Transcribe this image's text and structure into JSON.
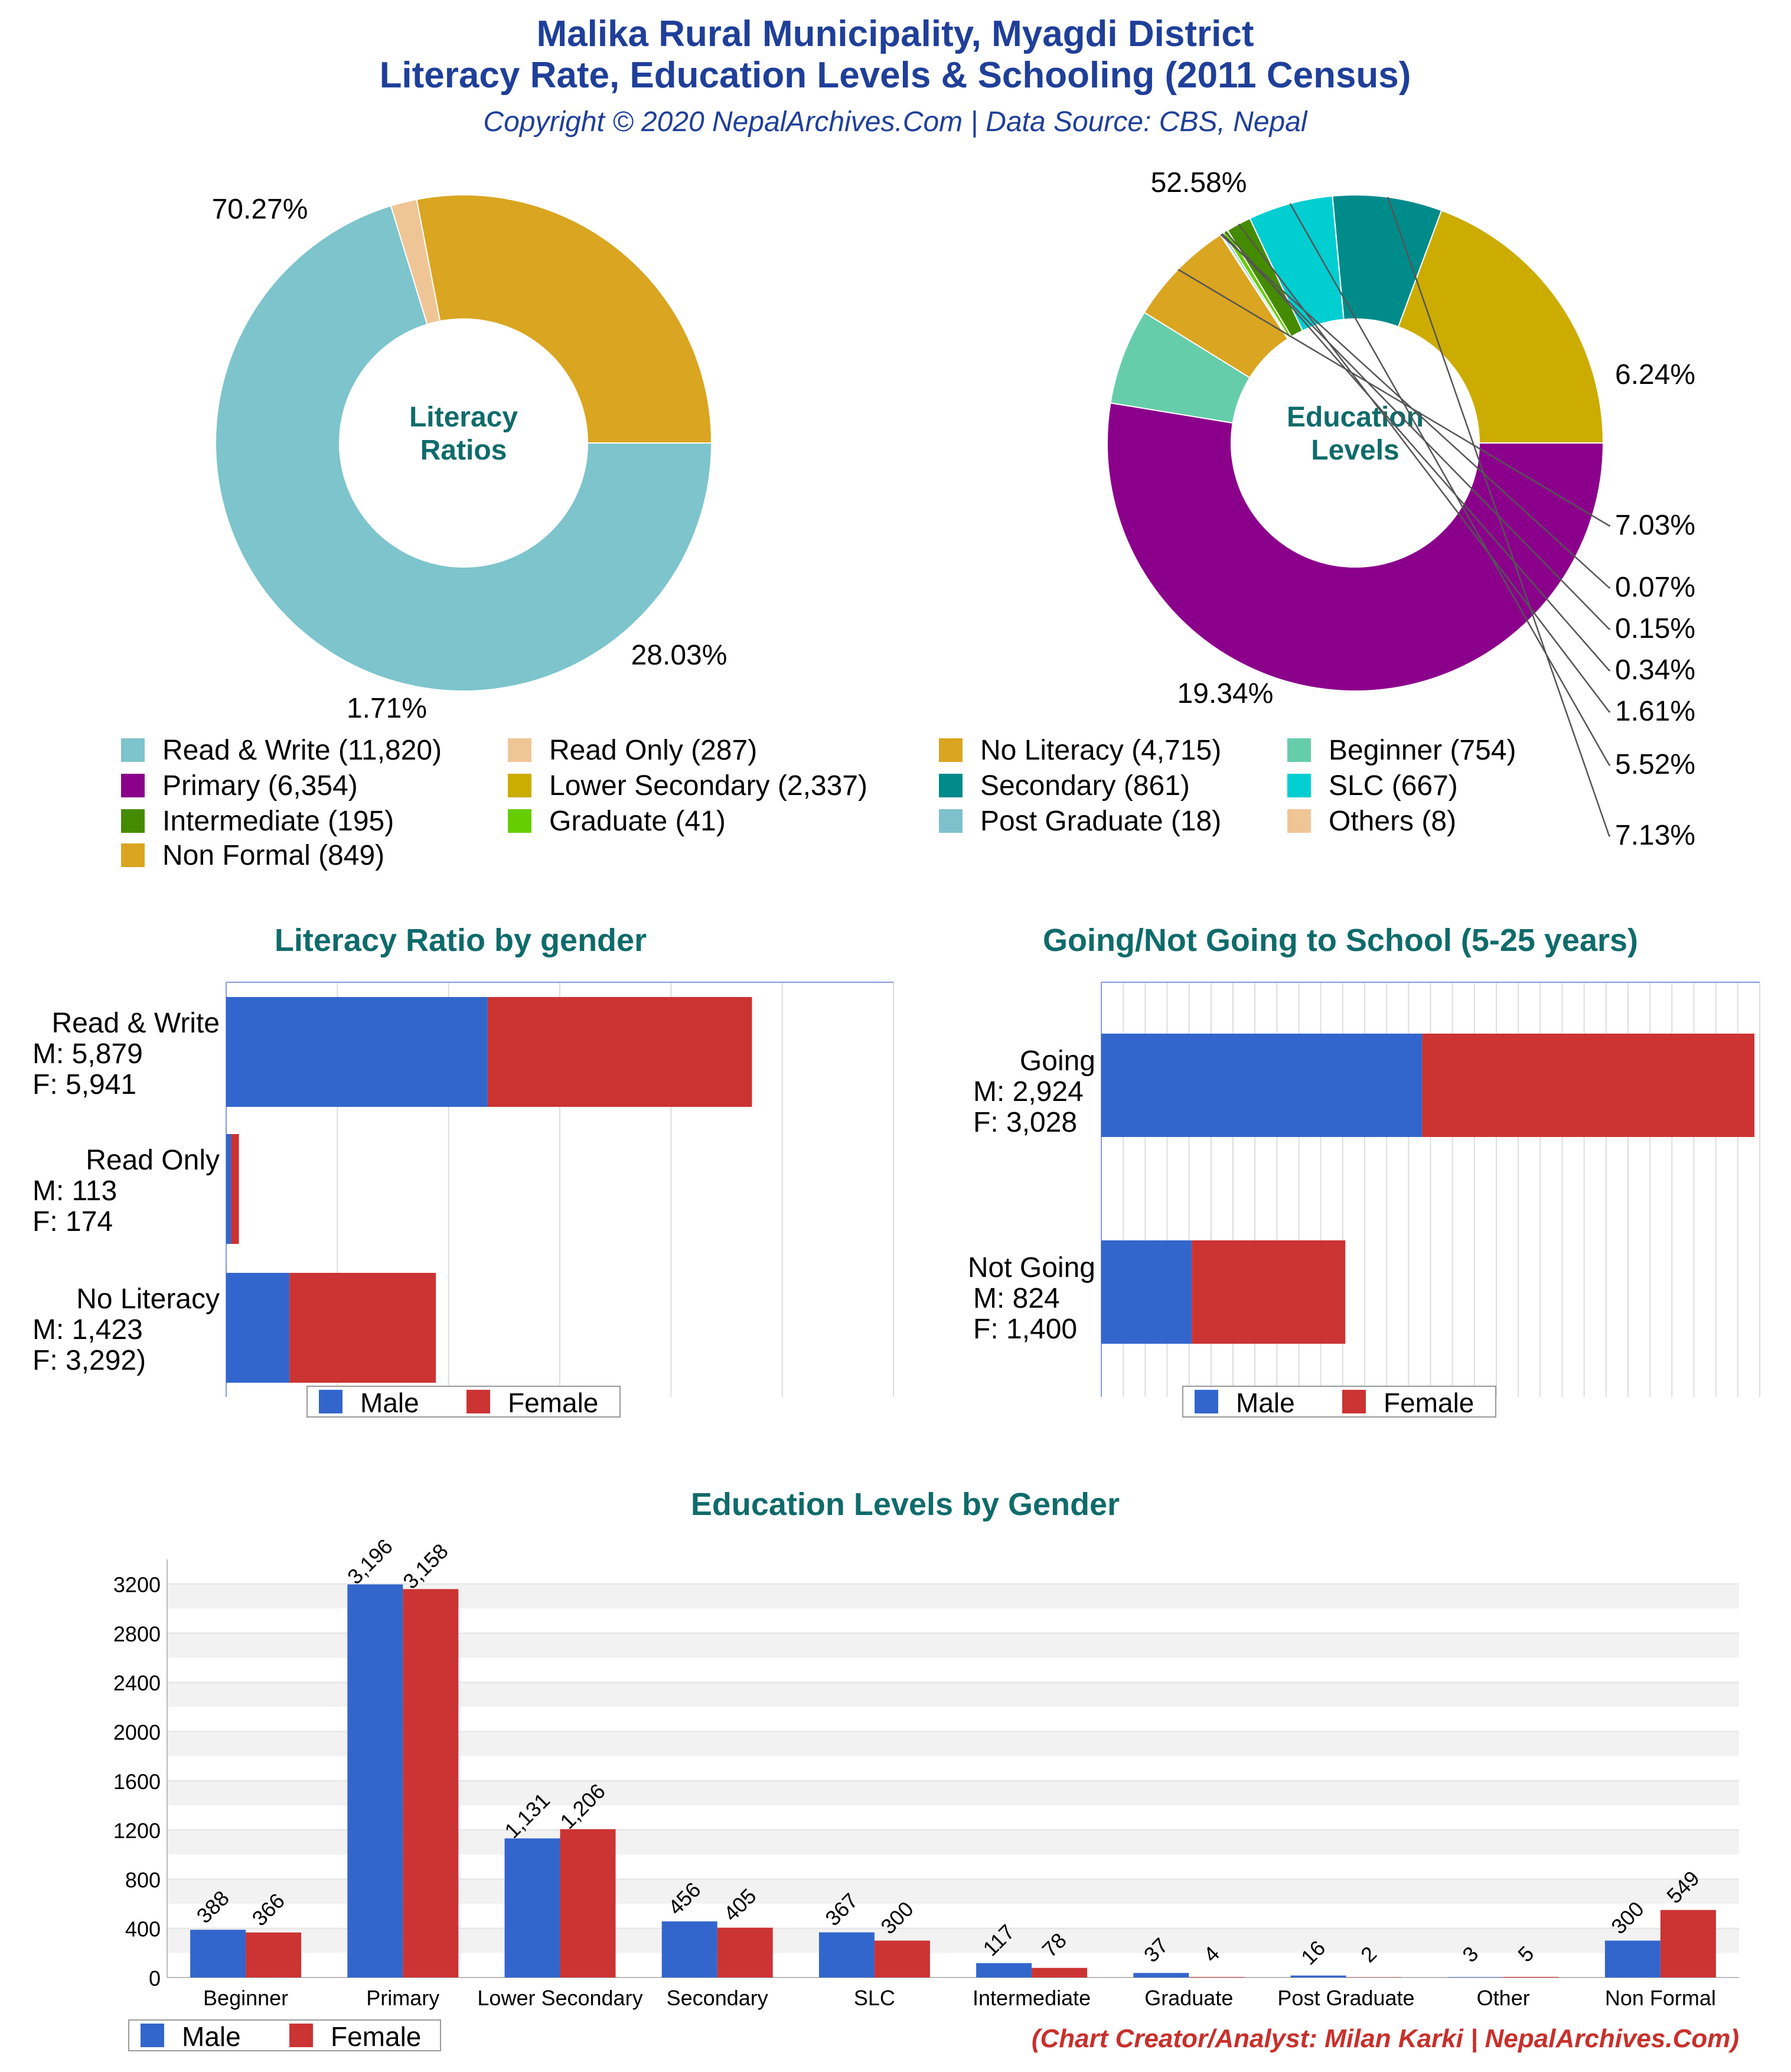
{
  "header": {
    "title_line1": "Malika Rural Municipality, Myagdi District",
    "title_line2": "Literacy Rate, Education Levels & Schooling (2011 Census)",
    "copyright": "Copyright © 2020 NepalArchives.Com | Data Source: CBS, Nepal"
  },
  "colors": {
    "male": "#3366cc",
    "female": "#cc3333",
    "title": "#1f3f99",
    "section": "#0f6b6b",
    "credit": "#c8302c"
  },
  "legend": {
    "items": [
      {
        "label": "Read & Write (11,820)",
        "color": "#7dc4cc"
      },
      {
        "label": "Read Only (287)",
        "color": "#f0c596"
      },
      {
        "label": "No Literacy (4,715)",
        "color": "#daa520"
      },
      {
        "label": "Beginner (754)",
        "color": "#66cdaa"
      },
      {
        "label": "Primary (6,354)",
        "color": "#8b008b"
      },
      {
        "label": "Lower Secondary (2,337)",
        "color": "#ccac00"
      },
      {
        "label": "Secondary (861)",
        "color": "#008b8b"
      },
      {
        "label": "SLC (667)",
        "color": "#00ced1"
      },
      {
        "label": "Intermediate (195)",
        "color": "#458b00"
      },
      {
        "label": "Graduate (41)",
        "color": "#66cd00"
      },
      {
        "label": "Post Graduate (18)",
        "color": "#7ec0cc"
      },
      {
        "label": "Others (8)",
        "color": "#f0c596"
      },
      {
        "label": "Non Formal (849)",
        "color": "#daa520"
      }
    ]
  },
  "chart_data": [
    {
      "type": "pie",
      "title": "Literacy Ratios",
      "slices": [
        {
          "label": "Read & Write",
          "value": 11820,
          "percent": "70.27%",
          "color": "#7dc4cc"
        },
        {
          "label": "Read Only",
          "value": 287,
          "percent": "1.71%",
          "color": "#f0c596"
        },
        {
          "label": "No Literacy",
          "value": 4715,
          "percent": "28.03%",
          "color": "#daa520"
        }
      ]
    },
    {
      "type": "pie",
      "title": "Education Levels",
      "slices": [
        {
          "label": "Primary",
          "value": 6354,
          "percent": "52.58%",
          "color": "#8b008b"
        },
        {
          "label": "Beginner",
          "value": 754,
          "percent": "6.24%",
          "color": "#66cdaa"
        },
        {
          "label": "Non Formal",
          "value": 849,
          "percent": "7.03%",
          "color": "#daa520"
        },
        {
          "label": "Others",
          "value": 8,
          "percent": "0.07%",
          "color": "#f0c596"
        },
        {
          "label": "Post Graduate",
          "value": 18,
          "percent": "0.15%",
          "color": "#7ec0cc"
        },
        {
          "label": "Graduate",
          "value": 41,
          "percent": "0.34%",
          "color": "#66cd00"
        },
        {
          "label": "Intermediate",
          "value": 195,
          "percent": "1.61%",
          "color": "#458b00"
        },
        {
          "label": "SLC",
          "value": 667,
          "percent": "5.52%",
          "color": "#00ced1"
        },
        {
          "label": "Secondary",
          "value": 861,
          "percent": "7.13%",
          "color": "#008b8b"
        },
        {
          "label": "Lower Secondary",
          "value": 2337,
          "percent": "19.34%",
          "color": "#ccac00"
        }
      ]
    },
    {
      "type": "bar",
      "orientation": "horizontal",
      "stacked": true,
      "title": "Literacy Ratio by gender",
      "categories": [
        {
          "name": "Read & Write",
          "male_label": "M: 5,879",
          "female_label": "F: 5,941"
        },
        {
          "name": "Read Only",
          "male_label": "M: 113",
          "female_label": "F: 174"
        },
        {
          "name": "No Literacy",
          "male_label": "M: 1,423",
          "female_label": "F: 3,292)"
        }
      ],
      "series": [
        {
          "name": "Male",
          "values": [
            5879,
            113,
            1423
          ]
        },
        {
          "name": "Female",
          "values": [
            5941,
            174,
            3292
          ]
        }
      ],
      "xlim": [
        0,
        15000
      ],
      "grid": true,
      "legend": "bottom"
    },
    {
      "type": "bar",
      "orientation": "horizontal",
      "stacked": true,
      "title": "Going/Not Going to School (5-25 years)",
      "categories": [
        {
          "name": "Going",
          "male_label": "M: 2,924",
          "female_label": "F: 3,028"
        },
        {
          "name": "Not Going",
          "male_label": "M: 824",
          "female_label": "F: 1,400"
        }
      ],
      "series": [
        {
          "name": "Male",
          "values": [
            2924,
            824
          ]
        },
        {
          "name": "Female",
          "values": [
            3028,
            1400
          ]
        }
      ],
      "xlim": [
        0,
        6000
      ],
      "grid": true,
      "legend": "bottom"
    },
    {
      "type": "bar",
      "orientation": "vertical",
      "stacked": false,
      "title": "Education Levels by Gender",
      "categories": [
        "Beginner",
        "Primary",
        "Lower Secondary",
        "Secondary",
        "SLC",
        "Intermediate",
        "Graduate",
        "Post Graduate",
        "Other",
        "Non Formal"
      ],
      "series": [
        {
          "name": "Male",
          "values": [
            388,
            3196,
            1131,
            456,
            367,
            117,
            37,
            16,
            3,
            300
          ],
          "labels": [
            "388",
            "3,196",
            "1,131",
            "456",
            "367",
            "117",
            "37",
            "16",
            "3",
            "300"
          ]
        },
        {
          "name": "Female",
          "values": [
            366,
            3158,
            1206,
            405,
            300,
            78,
            4,
            2,
            5,
            549
          ],
          "labels": [
            "366",
            "3,158",
            "1,206",
            "405",
            "300",
            "78",
            "4",
            "2",
            "5",
            "549"
          ]
        }
      ],
      "yticks": [
        "0",
        "400",
        "800",
        "1200",
        "1600",
        "2000",
        "2400",
        "2800",
        "3200"
      ],
      "ylim": [
        0,
        3400
      ],
      "grid": true,
      "legend": "bottom-left"
    }
  ],
  "legend_labels": {
    "male": "Male",
    "female": "Female"
  },
  "footer": {
    "credit": "(Chart Creator/Analyst: Milan Karki | NepalArchives.Com)"
  }
}
